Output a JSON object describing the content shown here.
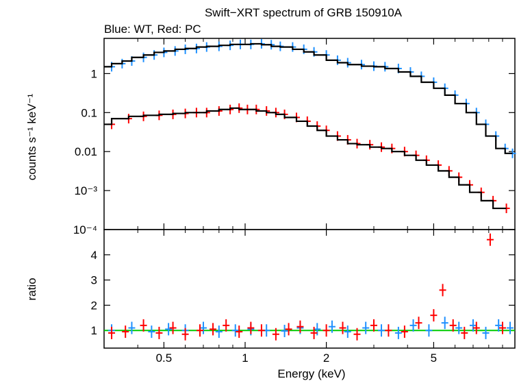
{
  "chart_data": [
    {
      "type": "scatter",
      "title": "Swift−XRT spectrum of GRB 150910A",
      "subtitle": "Blue: WT, Red: PC",
      "xlabel": "Energy (keV)",
      "ylabel": "counts s⁻¹ keV⁻¹",
      "xscale": "log",
      "yscale": "log",
      "xlim": [
        0.3,
        10
      ],
      "ylim": [
        0.0001,
        8
      ],
      "x_ticks": [
        "0.5",
        "1",
        "2",
        "5"
      ],
      "y_ticks": [
        "10⁻⁴",
        "10⁻³",
        "0.01",
        "0.1",
        "1"
      ],
      "series": [
        {
          "color": "#1e90ff",
          "x": [
            0.32,
            0.35,
            0.38,
            0.42,
            0.46,
            0.5,
            0.55,
            0.6,
            0.66,
            0.72,
            0.8,
            0.88,
            0.96,
            1.05,
            1.15,
            1.25,
            1.35,
            1.5,
            1.65,
            1.8,
            2.0,
            2.2,
            2.4,
            2.7,
            3.0,
            3.3,
            3.7,
            4.1,
            4.5,
            5.0,
            5.5,
            6.0,
            6.6,
            7.2,
            7.8,
            8.5,
            9.2,
            9.8
          ],
          "y": [
            1.5,
            1.8,
            2.1,
            2.6,
            3.0,
            3.5,
            3.8,
            4.2,
            4.4,
            4.8,
            5.0,
            5.3,
            5.6,
            5.6,
            5.8,
            5.5,
            5.0,
            4.8,
            4.2,
            3.6,
            3.0,
            2.2,
            1.9,
            1.7,
            1.55,
            1.5,
            1.35,
            1.1,
            0.85,
            0.6,
            0.42,
            0.28,
            0.17,
            0.1,
            0.05,
            0.025,
            0.012,
            0.009
          ]
        },
        {
          "color": "#ff0000",
          "x": [
            0.32,
            0.37,
            0.42,
            0.48,
            0.54,
            0.6,
            0.66,
            0.72,
            0.8,
            0.88,
            0.95,
            1.02,
            1.1,
            1.2,
            1.3,
            1.4,
            1.55,
            1.7,
            1.85,
            2.0,
            2.2,
            2.4,
            2.6,
            2.9,
            3.2,
            3.5,
            3.9,
            4.3,
            4.7,
            5.2,
            5.7,
            6.2,
            6.8,
            7.5,
            8.3,
            9.3
          ],
          "y": [
            0.05,
            0.07,
            0.08,
            0.085,
            0.09,
            0.095,
            0.1,
            0.1,
            0.11,
            0.12,
            0.13,
            0.12,
            0.12,
            0.11,
            0.1,
            0.09,
            0.075,
            0.06,
            0.045,
            0.035,
            0.025,
            0.02,
            0.016,
            0.015,
            0.013,
            0.012,
            0.01,
            0.008,
            0.006,
            0.0045,
            0.0032,
            0.0022,
            0.0014,
            0.0009,
            0.00055,
            0.00035
          ]
        }
      ]
    },
    {
      "type": "scatter",
      "xlabel": "Energy (keV)",
      "ylabel": "ratio",
      "xscale": "log",
      "xlim": [
        0.3,
        10
      ],
      "ylim": [
        0.3,
        5
      ],
      "x_ticks": [
        "0.5",
        "1",
        "2",
        "5"
      ],
      "y_ticks": [
        "1",
        "2",
        "3",
        "4"
      ],
      "reference_line": {
        "y": 1,
        "color": "#00cc00"
      },
      "series": [
        {
          "color": "#1e90ff",
          "x": [
            0.32,
            0.38,
            0.45,
            0.52,
            0.6,
            0.7,
            0.8,
            0.92,
            1.05,
            1.2,
            1.4,
            1.6,
            1.85,
            2.1,
            2.4,
            2.8,
            3.2,
            3.7,
            4.2,
            4.8,
            5.5,
            6.2,
            7.0,
            7.8,
            8.7,
            9.6
          ],
          "y": [
            1.0,
            1.1,
            0.95,
            1.05,
            1.0,
            1.1,
            0.95,
            1.0,
            1.05,
            1.0,
            0.98,
            1.1,
            1.05,
            1.15,
            0.95,
            1.1,
            1.0,
            0.9,
            1.2,
            1.0,
            1.3,
            1.1,
            1.2,
            0.9,
            1.2,
            1.1
          ]
        },
        {
          "color": "#ff0000",
          "x": [
            0.32,
            0.36,
            0.42,
            0.48,
            0.54,
            0.6,
            0.68,
            0.76,
            0.85,
            0.95,
            1.05,
            1.15,
            1.3,
            1.45,
            1.6,
            1.8,
            2.0,
            2.3,
            2.6,
            3.0,
            3.4,
            3.9,
            4.4,
            5.0,
            5.4,
            5.9,
            6.5,
            7.2,
            8.1,
            9.0
          ],
          "y": [
            0.9,
            0.95,
            1.2,
            0.9,
            1.1,
            0.85,
            1.0,
            1.05,
            1.2,
            0.95,
            1.1,
            1.0,
            0.85,
            1.05,
            1.15,
            0.9,
            1.0,
            1.1,
            0.85,
            1.2,
            1.0,
            0.95,
            1.3,
            1.6,
            2.6,
            1.2,
            0.9,
            1.1,
            4.6,
            1.1
          ]
        }
      ]
    }
  ]
}
